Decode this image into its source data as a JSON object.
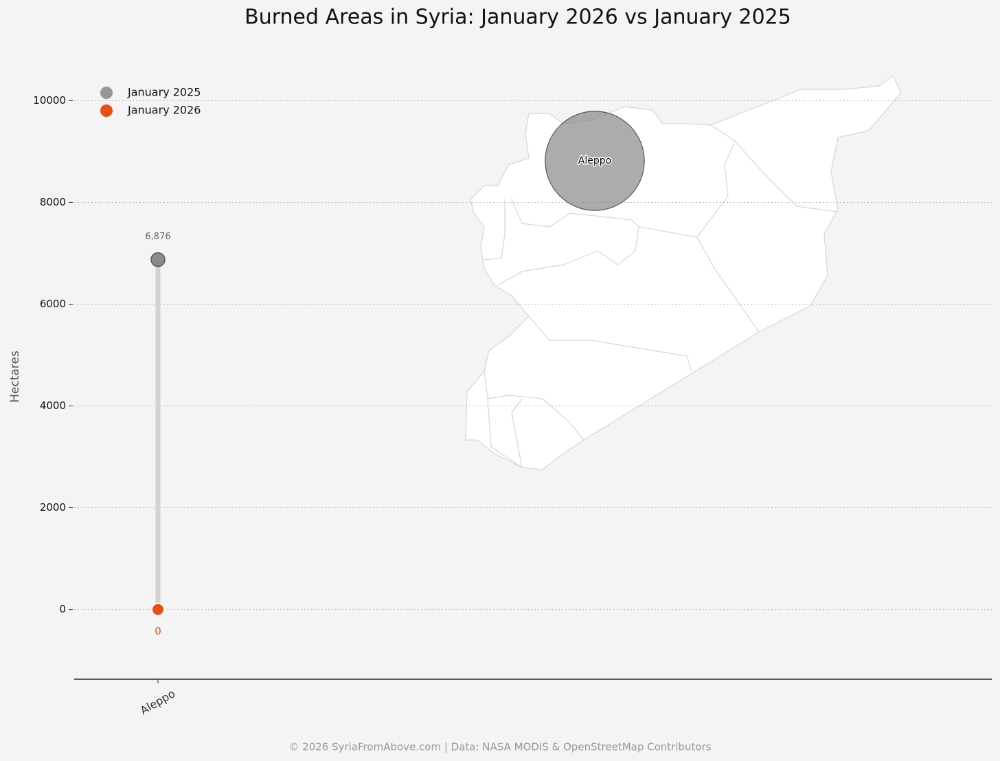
{
  "chart_data": {
    "type": "dumbbell",
    "title": "Burned Areas in Syria: January 2026 vs January 2025",
    "y_label": "Hectares",
    "categories": [
      "Aleppo"
    ],
    "series": [
      {
        "name": "January 2025",
        "color": "#7f7f7f",
        "values": [
          6876
        ],
        "value_labels": [
          "6,876"
        ]
      },
      {
        "name": "January 2026",
        "color": "#e8500f",
        "values": [
          0
        ]
      }
    ],
    "ylim": [
      -1370,
      11100
    ],
    "yticks": [
      0,
      2000,
      4000,
      6000,
      8000,
      10000
    ],
    "grid": true,
    "legend": "upper-left",
    "source": "© 2026 SyriaFromAbove.com | Data: NASA MODIS & OpenStreetMap Contributors"
  }
}
